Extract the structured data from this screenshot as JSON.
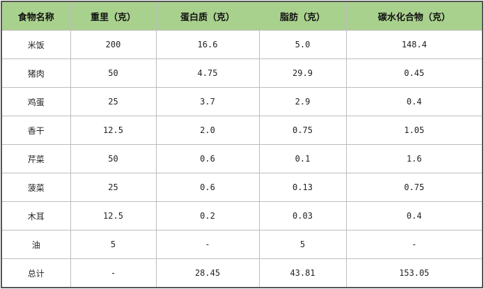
{
  "headers": [
    "食物名称",
    "重里（克）",
    "蛋白质（克）",
    "脂肪（克）",
    "碳水化合物（克）"
  ],
  "rows": [
    [
      "米饭",
      "200",
      "16.6",
      "5.0",
      "148.4"
    ],
    [
      "猪肉",
      "50",
      "4.75",
      "29.9",
      "0.45"
    ],
    [
      "鸡蛋",
      "25",
      "3.7",
      "2.9",
      "0.4"
    ],
    [
      "香干",
      "12.5",
      "2.0",
      "0.75",
      "1.05"
    ],
    [
      "芹菜",
      "50",
      "0.6",
      "0.1",
      "1.6"
    ],
    [
      "菠菜",
      "25",
      "0.6",
      "0.13",
      "0.75"
    ],
    [
      "木耳",
      "12.5",
      "0.2",
      "0.03",
      "0.4"
    ],
    [
      "油",
      "5",
      "-",
      "5",
      "-"
    ],
    [
      "总计",
      "-",
      "28.45",
      "43.81",
      "153.05"
    ]
  ],
  "colors": {
    "header_bg": "#a9d18e"
  }
}
